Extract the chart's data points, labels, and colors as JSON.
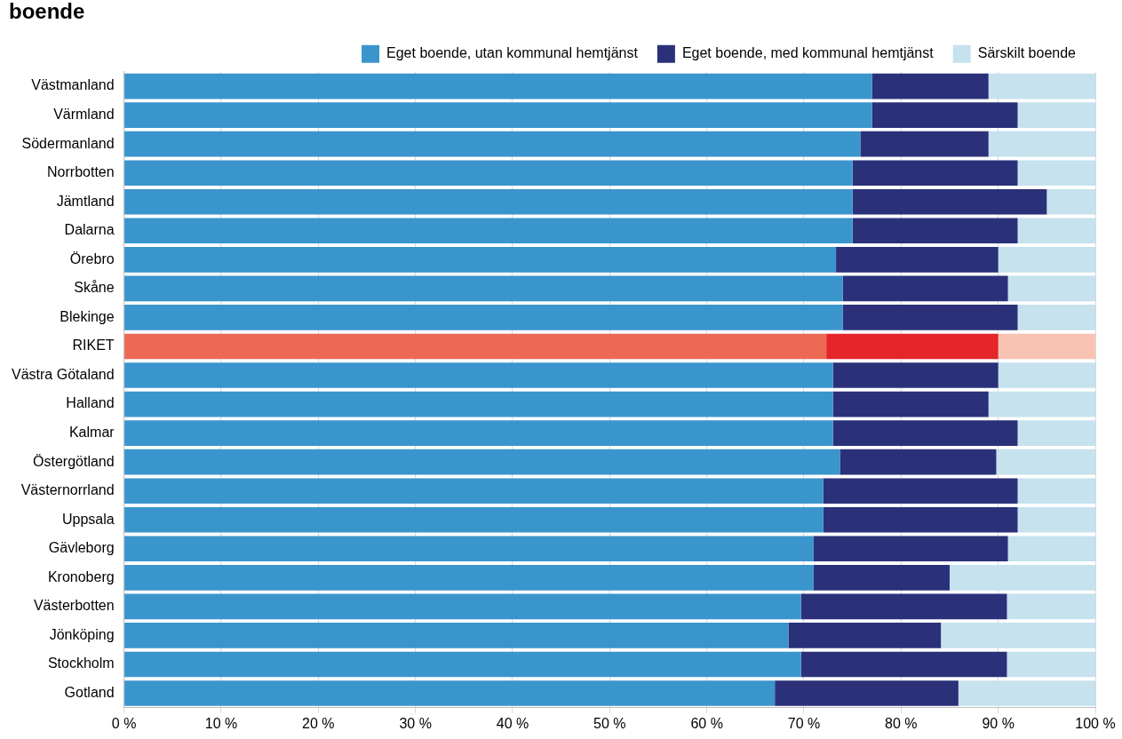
{
  "chart_data": {
    "type": "bar",
    "orientation": "horizontal",
    "stacked": true,
    "title": "boende",
    "categories": [
      "Västmanland",
      "Värmland",
      "Södermanland",
      "Norrbotten",
      "Jämtland",
      "Dalarna",
      "Örebro",
      "Skåne",
      "Blekinge",
      "RIKET",
      "Västra Götaland",
      "Halland",
      "Kalmar",
      "Östergötland",
      "Västernorrland",
      "Uppsala",
      "Gävleborg",
      "Kronoberg",
      "Västerbotten",
      "Jönköping",
      "Stockholm",
      "Gotland"
    ],
    "series": [
      {
        "name": "Eget boende, utan kommunal hemtjänst",
        "color": "#3a95cd",
        "colors": [
          "#3a95cd",
          "#3a95cd",
          "#3a95cd",
          "#3a95cd",
          "#3a95cd",
          "#3a95cd",
          "#3a95cd",
          "#3a95cd",
          "#3a95cd",
          "#ec6a55",
          "#3a95cd",
          "#3a95cd",
          "#3a95cd",
          "#3a95cd",
          "#3a95cd",
          "#3a95cd",
          "#3a95cd",
          "#3a95cd",
          "#3a95cd",
          "#3a95cd",
          "#3a95cd",
          "#3a95cd"
        ],
        "values": [
          77.0,
          77.0,
          75.8,
          75.0,
          75.0,
          75.0,
          73.3,
          74.0,
          74.0,
          72.3,
          73.0,
          73.0,
          73.0,
          73.7,
          72.0,
          72.0,
          71.0,
          71.0,
          69.7,
          68.4,
          69.7,
          67.0
        ]
      },
      {
        "name": "Eget boende, med kommunal hemtjänst",
        "color": "#2b3179",
        "colors": [
          "#2b3179",
          "#2b3179",
          "#2b3179",
          "#2b3179",
          "#2b3179",
          "#2b3179",
          "#2b3179",
          "#2b3179",
          "#2b3179",
          "#e4262b",
          "#2b3179",
          "#2b3179",
          "#2b3179",
          "#2b3179",
          "#2b3179",
          "#2b3179",
          "#2b3179",
          "#2b3179",
          "#2b3179",
          "#2b3179",
          "#2b3179",
          "#2b3179"
        ],
        "values": [
          12.0,
          15.0,
          13.2,
          17.0,
          20.0,
          17.0,
          16.7,
          17.0,
          18.0,
          17.7,
          17.0,
          16.0,
          19.0,
          16.1,
          20.0,
          20.0,
          20.0,
          14.0,
          21.2,
          15.7,
          21.2,
          18.9
        ]
      },
      {
        "name": "Särskilt boende",
        "color": "#c5e2ee",
        "colors": [
          "#c5e2ee",
          "#c5e2ee",
          "#c5e2ee",
          "#c5e2ee",
          "#c5e2ee",
          "#c5e2ee",
          "#c5e2ee",
          "#c5e2ee",
          "#c5e2ee",
          "#f9c3b4",
          "#c5e2ee",
          "#c5e2ee",
          "#c5e2ee",
          "#c5e2ee",
          "#c5e2ee",
          "#c5e2ee",
          "#c5e2ee",
          "#c5e2ee",
          "#c5e2ee",
          "#c5e2ee",
          "#c5e2ee",
          "#c5e2ee"
        ],
        "values": [
          11.0,
          8.0,
          11.0,
          8.0,
          5.0,
          8.0,
          10.0,
          9.0,
          8.0,
          10.0,
          10.0,
          11.0,
          8.0,
          10.2,
          8.0,
          8.0,
          9.0,
          15.0,
          9.1,
          15.9,
          9.1,
          14.1
        ]
      }
    ],
    "xlim": [
      0,
      100
    ],
    "xticks": [
      {
        "value": 0,
        "label": "0 %"
      },
      {
        "value": 10,
        "label": "10 %"
      },
      {
        "value": 20,
        "label": "20 %"
      },
      {
        "value": 30,
        "label": "30 %"
      },
      {
        "value": 40,
        "label": "40 %"
      },
      {
        "value": 50,
        "label": "50 %"
      },
      {
        "value": 60,
        "label": "60 %"
      },
      {
        "value": 70,
        "label": "70 %"
      },
      {
        "value": 80,
        "label": "80 %"
      },
      {
        "value": 90,
        "label": "90 %"
      },
      {
        "value": 100,
        "label": "100 %"
      }
    ],
    "grid": "x",
    "legend": "top right"
  }
}
